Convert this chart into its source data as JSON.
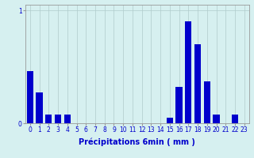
{
  "title": "",
  "xlabel": "Précipitations 6min ( mm )",
  "categories": [
    0,
    1,
    2,
    3,
    4,
    5,
    6,
    7,
    8,
    9,
    10,
    11,
    12,
    13,
    14,
    15,
    16,
    17,
    18,
    19,
    20,
    21,
    22,
    23
  ],
  "values": [
    0.46,
    0.27,
    0.08,
    0.08,
    0.08,
    0,
    0,
    0,
    0,
    0,
    0,
    0,
    0,
    0,
    0,
    0.05,
    0.32,
    0.9,
    0.7,
    0.37,
    0.08,
    0,
    0.08,
    0
  ],
  "bar_color": "#0000cc",
  "bg_color": "#d6f0f0",
  "grid_color": "#b0cccc",
  "yticks": [
    0,
    1
  ],
  "ylim": [
    0,
    1.05
  ],
  "xlim": [
    -0.5,
    23.5
  ],
  "tick_color": "#0000cc",
  "label_fontsize": 7,
  "tick_fontsize": 5.5
}
